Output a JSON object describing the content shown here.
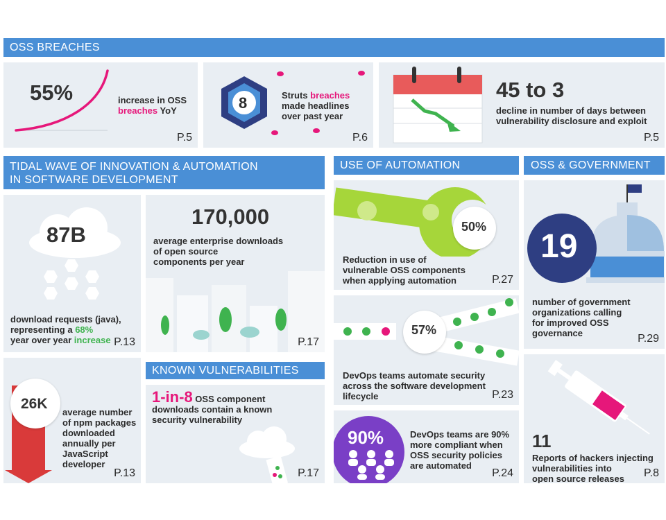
{
  "sections": {
    "oss_breaches": "OSS BREACHES",
    "tidal_line1": "TIDAL WAVE OF INNOVATION & AUTOMATION",
    "tidal_line2": "IN SOFTWARE DEVELOPMENT",
    "automation": "USE OF AUTOMATION",
    "government": "OSS & GOVERNMENT",
    "known_vulns": "KNOWN VULNERABILITIES"
  },
  "breach_increase": {
    "value": "55%",
    "text1": "increase in OSS",
    "text2_pink": "breaches",
    "text2_rest": " YoY",
    "page": "P.5"
  },
  "struts": {
    "value": "8",
    "text1_a": "Struts ",
    "text1_pink": "breaches",
    "text2": "made headlines",
    "text3": "over past year",
    "page": "P.6"
  },
  "days_decline": {
    "value": "45 to 3",
    "text1": "decline in number of days between",
    "text2": "vulnerability disclosure and exploit",
    "page": "P.5"
  },
  "downloads_87b": {
    "value": "87B",
    "text1": "download requests (java),",
    "text2_a": "representing a ",
    "text2_green": "68%",
    "text3_a": "year over year ",
    "text3_green": "increase",
    "page": "P.13"
  },
  "downloads_170k": {
    "value": "170,000",
    "text1": "average enterprise downloads",
    "text2": "of open source",
    "text3": "components per year",
    "page": "P.17"
  },
  "npm_26k": {
    "value": "26K",
    "text1": "average number",
    "text2": "of npm packages",
    "text3": "downloaded",
    "text4": "annually per",
    "text5": "JavaScript",
    "text6": "developer",
    "page": "P.13"
  },
  "one_in_8": {
    "value": "1-in-8",
    "text1": " OSS component",
    "text2": "downloads contain a known",
    "text3": "security vulnerability",
    "page": "P.17"
  },
  "automation_50": {
    "value": "50%",
    "text1": "Reduction in use of",
    "text2": "vulnerable OSS components",
    "text3": "when applying automation",
    "page": "P.27"
  },
  "automation_57": {
    "value": "57%",
    "text1": "DevOps teams automate security",
    "text2": "across the software development",
    "text3": "lifecycle",
    "page": "P.23"
  },
  "automation_90": {
    "value": "90%",
    "text1": "DevOps teams are 90%",
    "text2": "more compliant when",
    "text3": "OSS security policies",
    "text4": "are automated",
    "page": "P.24"
  },
  "gov_19": {
    "value": "19",
    "text1": "number of government",
    "text2": "organizations calling",
    "text3": "for improved OSS",
    "text4": "governance",
    "page": "P.29"
  },
  "hackers_11": {
    "value": "11",
    "text1": "Reports of hackers injecting",
    "text2": "vulnerabilities into",
    "text3": "open source releases",
    "page": "P.8"
  },
  "colors": {
    "header": "#4a8fd6",
    "panel": "#e9eef3",
    "pink": "#e6177a",
    "green": "#3fb34f",
    "lime": "#a6d63a",
    "navy": "#2e3e82",
    "purple": "#7a3fc6",
    "red": "#d93a3a"
  }
}
